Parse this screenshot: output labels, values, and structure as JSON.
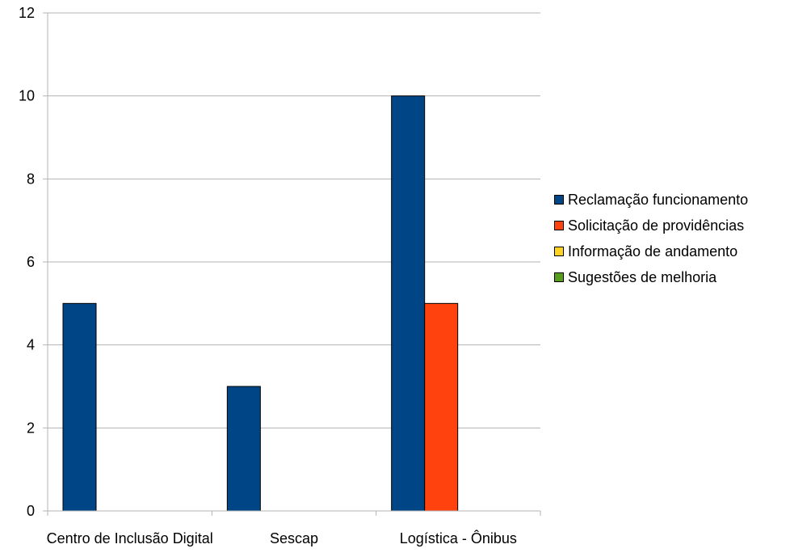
{
  "chart_data": {
    "type": "bar",
    "title": "",
    "xlabel": "",
    "ylabel": "",
    "categories": [
      "Centro de Inclusão Digital",
      "Sescap",
      "Logística - Ônibus"
    ],
    "series": [
      {
        "name": "Reclamação funcionamento",
        "color": "#004586",
        "values": [
          5,
          3,
          10
        ]
      },
      {
        "name": "Solicitação de providências",
        "color": "#ff420e",
        "values": [
          0,
          0,
          5
        ]
      },
      {
        "name": "Informação de andamento",
        "color": "#ffd320",
        "values": [
          0,
          0,
          0
        ]
      },
      {
        "name": "Sugestões de melhoria",
        "color": "#579d1c",
        "values": [
          0,
          0,
          0
        ]
      }
    ],
    "ylim": [
      0,
      12
    ],
    "yticks": [
      0,
      2,
      4,
      6,
      8,
      10,
      12
    ],
    "grid": "horizontal",
    "legend_position": "right"
  }
}
